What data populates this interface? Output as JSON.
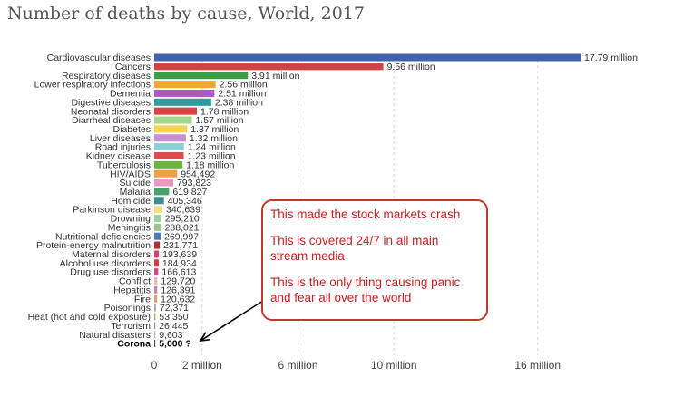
{
  "chart_data": {
    "type": "bar",
    "orientation": "horizontal",
    "title": "Number of deaths by cause, World, 2017",
    "xlim": [
      0,
      18000000
    ],
    "x_ticks": [
      {
        "value": 0,
        "label": "0"
      },
      {
        "value": 2000000,
        "label": "2 million"
      },
      {
        "value": 6000000,
        "label": "6 million"
      },
      {
        "value": 10000000,
        "label": "10 million"
      },
      {
        "value": 16000000,
        "label": "16 million"
      }
    ],
    "grid": true,
    "bars": [
      {
        "category": "Cardiovascular diseases",
        "value": 17790000,
        "label": "17.79 million",
        "color": "#3f63ad"
      },
      {
        "category": "Cancers",
        "value": 9560000,
        "label": "9.56 million",
        "color": "#cf4444"
      },
      {
        "category": "Respiratory diseases",
        "value": 3910000,
        "label": "3.91 million",
        "color": "#3a9c43"
      },
      {
        "category": "Lower respiratory infections",
        "value": 2560000,
        "label": "2.56 million",
        "color": "#f0a73a"
      },
      {
        "category": "Dementia",
        "value": 2510000,
        "label": "2.51 million",
        "color": "#a95bc2"
      },
      {
        "category": "Digestive diseases",
        "value": 2380000,
        "label": "2.38 million",
        "color": "#2d9c9c"
      },
      {
        "category": "Neonatal disorders",
        "value": 1780000,
        "label": "1.78 million",
        "color": "#d94545"
      },
      {
        "category": "Diarrheal diseases",
        "value": 1570000,
        "label": "1.57 million",
        "color": "#a4d88c"
      },
      {
        "category": "Diabetes",
        "value": 1370000,
        "label": "1.37 million",
        "color": "#f7d44c"
      },
      {
        "category": "Liver diseases",
        "value": 1320000,
        "label": "1.32 million",
        "color": "#c78ed4"
      },
      {
        "category": "Road injuries",
        "value": 1240000,
        "label": "1.24 million",
        "color": "#8ccfd6"
      },
      {
        "category": "Kidney disease",
        "value": 1230000,
        "label": "1.23 million",
        "color": "#d94f4f"
      },
      {
        "category": "Tuberculosis",
        "value": 1180000,
        "label": "1.18 million",
        "color": "#6cb33f"
      },
      {
        "category": "HIV/AIDS",
        "value": 954492,
        "label": "954,492",
        "color": "#f29d47"
      },
      {
        "category": "Suicide",
        "value": 793823,
        "label": "793,823",
        "color": "#e79bc0"
      },
      {
        "category": "Malaria",
        "value": 619827,
        "label": "619,827",
        "color": "#46a36b"
      },
      {
        "category": "Homicide",
        "value": 405346,
        "label": "405,346",
        "color": "#3c8f8f"
      },
      {
        "category": "Parkinson disease",
        "value": 340639,
        "label": "340,639",
        "color": "#f5e08a"
      },
      {
        "category": "Drowning",
        "value": 295210,
        "label": "295,210",
        "color": "#9ed1a0"
      },
      {
        "category": "Meningitis",
        "value": 288021,
        "label": "288,021",
        "color": "#9fc28a"
      },
      {
        "category": "Nutritional deficiencies",
        "value": 269997,
        "label": "269,997",
        "color": "#4a7bb5"
      },
      {
        "category": "Protein-energy malnutrition",
        "value": 231771,
        "label": "231,771",
        "color": "#a83232"
      },
      {
        "category": "Maternal disorders",
        "value": 193639,
        "label": "193,639",
        "color": "#d6456e"
      },
      {
        "category": "Alcohol use disorders",
        "value": 184934,
        "label": "184,934",
        "color": "#cf3c3c"
      },
      {
        "category": "Drug use disorders",
        "value": 166613,
        "label": "166,613",
        "color": "#c95080"
      },
      {
        "category": "Conflict",
        "value": 129720,
        "label": "129,720",
        "color": "#f2b9b0"
      },
      {
        "category": "Hepatitis",
        "value": 126391,
        "label": "126,391",
        "color": "#c48a9e"
      },
      {
        "category": "Fire",
        "value": 120632,
        "label": "120,632",
        "color": "#e5a06a"
      },
      {
        "category": "Poisonings",
        "value": 72371,
        "label": "72,371",
        "color": "#aaaaaa"
      },
      {
        "category": "Heat (hot and cold exposure)",
        "value": 53350,
        "label": "53,350",
        "color": "#c9a36a"
      },
      {
        "category": "Terrorism",
        "value": 26445,
        "label": "26,445",
        "color": "#999999"
      },
      {
        "category": "Natural disasters",
        "value": 9603,
        "label": "9,603",
        "color": "#bbbbbb"
      },
      {
        "category": "Corona",
        "value": 5000,
        "label": "5,000 ?",
        "color": "#555555",
        "bold": true
      }
    ],
    "annotation": {
      "lines": [
        "This made the stock markets crash",
        "This is covered 24/7 in all main stream media",
        "This is the only thing causing panic and fear all over the world"
      ],
      "border_color": "#c0392b",
      "text_color": "#cc1f1f",
      "arrow_target": "Corona"
    }
  }
}
